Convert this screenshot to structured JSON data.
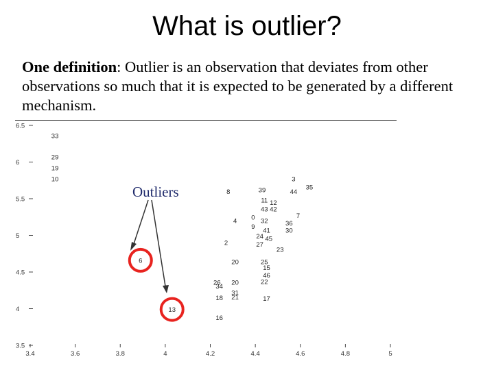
{
  "title": "What is outlier?",
  "definition": {
    "term": "One definition",
    "text": ": Outlier is an observation that deviates from other observations so much that it is expected to be generated by a different mechanism."
  },
  "callout_label": "Outliers",
  "chart_data": {
    "type": "scatter",
    "title": "",
    "xlabel": "",
    "ylabel": "",
    "xlim": [
      3.4,
      5.0
    ],
    "ylim": [
      3.5,
      6.5
    ],
    "x_ticks": [
      "3.4",
      "3.6",
      "3.8",
      "4",
      "4.2",
      "4.4",
      "4.6",
      "4.8",
      "5"
    ],
    "y_ticks": [
      "3.5",
      "4",
      "4.5",
      "5",
      "5.5",
      "6",
      "6.5"
    ],
    "points": [
      {
        "label": "33",
        "x": 3.51,
        "y": 6.36
      },
      {
        "label": "29",
        "x": 3.51,
        "y": 6.07
      },
      {
        "label": "19",
        "x": 3.51,
        "y": 5.92
      },
      {
        "label": "10",
        "x": 3.51,
        "y": 5.77
      },
      {
        "label": "6",
        "x": 3.89,
        "y": 4.66,
        "outlier": true
      },
      {
        "label": "13",
        "x": 4.03,
        "y": 3.99,
        "outlier": true
      },
      {
        "label": "8",
        "x": 4.28,
        "y": 5.6
      },
      {
        "label": "4",
        "x": 4.31,
        "y": 5.2
      },
      {
        "label": "2",
        "x": 4.27,
        "y": 4.9
      },
      {
        "label": "20",
        "x": 4.31,
        "y": 4.64
      },
      {
        "label": "26",
        "x": 4.23,
        "y": 4.36
      },
      {
        "label": "34",
        "x": 4.24,
        "y": 4.31
      },
      {
        "label": "20",
        "x": 4.31,
        "y": 4.36
      },
      {
        "label": "31",
        "x": 4.31,
        "y": 4.22
      },
      {
        "label": "18",
        "x": 4.24,
        "y": 4.15
      },
      {
        "label": "21",
        "x": 4.31,
        "y": 4.16
      },
      {
        "label": "16",
        "x": 4.24,
        "y": 3.88
      },
      {
        "label": "39",
        "x": 4.43,
        "y": 5.62
      },
      {
        "label": "11",
        "x": 4.44,
        "y": 5.48
      },
      {
        "label": "12",
        "x": 4.48,
        "y": 5.45
      },
      {
        "label": "43",
        "x": 4.44,
        "y": 5.36
      },
      {
        "label": "42",
        "x": 4.48,
        "y": 5.36
      },
      {
        "label": "0",
        "x": 4.39,
        "y": 5.25
      },
      {
        "label": "32",
        "x": 4.44,
        "y": 5.2
      },
      {
        "label": "9",
        "x": 4.39,
        "y": 5.12
      },
      {
        "label": "41",
        "x": 4.45,
        "y": 5.07
      },
      {
        "label": "24",
        "x": 4.42,
        "y": 4.99
      },
      {
        "label": "45",
        "x": 4.46,
        "y": 4.96
      },
      {
        "label": "27",
        "x": 4.42,
        "y": 4.88
      },
      {
        "label": "23",
        "x": 4.51,
        "y": 4.81
      },
      {
        "label": "3",
        "x": 4.57,
        "y": 5.77
      },
      {
        "label": "44",
        "x": 4.57,
        "y": 5.6
      },
      {
        "label": "35",
        "x": 4.64,
        "y": 5.66
      },
      {
        "label": "7",
        "x": 4.59,
        "y": 5.27
      },
      {
        "label": "36",
        "x": 4.55,
        "y": 5.17
      },
      {
        "label": "30",
        "x": 4.55,
        "y": 5.07
      },
      {
        "label": "25",
        "x": 4.44,
        "y": 4.64
      },
      {
        "label": "15",
        "x": 4.45,
        "y": 4.56
      },
      {
        "label": "46",
        "x": 4.45,
        "y": 4.46
      },
      {
        "label": "22",
        "x": 4.44,
        "y": 4.37
      },
      {
        "label": "17",
        "x": 4.45,
        "y": 4.14
      }
    ]
  }
}
